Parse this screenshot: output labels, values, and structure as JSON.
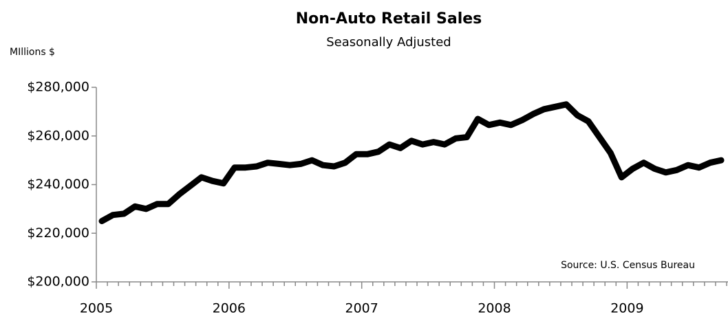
{
  "chart_data": {
    "type": "line",
    "title": "Non-Auto Retail Sales",
    "subtitle": "Seasonally Adjusted",
    "y_label": "MIllions $",
    "annotation": "Source: U.S. Census Bureau",
    "categories": [
      "2005",
      null,
      null,
      null,
      null,
      null,
      null,
      null,
      null,
      null,
      null,
      null,
      "2006",
      null,
      null,
      null,
      null,
      null,
      null,
      null,
      null,
      null,
      null,
      null,
      "2007",
      null,
      null,
      null,
      null,
      null,
      null,
      null,
      null,
      null,
      null,
      null,
      "2008",
      null,
      null,
      null,
      null,
      null,
      null,
      null,
      null,
      null,
      null,
      null,
      "2009",
      null,
      null,
      null,
      null,
      null,
      null,
      null,
      null
    ],
    "series": [
      {
        "name": "Non-Auto Retail Sales",
        "color": "#000000",
        "values": [
          225000,
          227500,
          228000,
          231000,
          230000,
          232000,
          232000,
          236000,
          239500,
          243000,
          241500,
          240500,
          247000,
          247000,
          247500,
          249000,
          248500,
          248000,
          248500,
          250000,
          248000,
          247500,
          249000,
          252500,
          252500,
          253500,
          256500,
          255000,
          258000,
          256500,
          257500,
          256500,
          259000,
          259500,
          267000,
          264500,
          265500,
          264500,
          266500,
          269000,
          271000,
          272000,
          273000,
          268500,
          266000,
          259500,
          253000,
          243000,
          246500,
          249000,
          246500,
          245000,
          246000,
          248000,
          247000,
          249000,
          250000
        ]
      }
    ],
    "ylim": [
      200000,
      280000
    ],
    "yticks": [
      {
        "value": 200000,
        "label": "$200,000"
      },
      {
        "value": 220000,
        "label": "$220,000"
      },
      {
        "value": 240000,
        "label": "$240,000"
      },
      {
        "value": 260000,
        "label": "$260,000"
      },
      {
        "value": 280000,
        "label": "$280,000"
      }
    ],
    "grid": false
  }
}
